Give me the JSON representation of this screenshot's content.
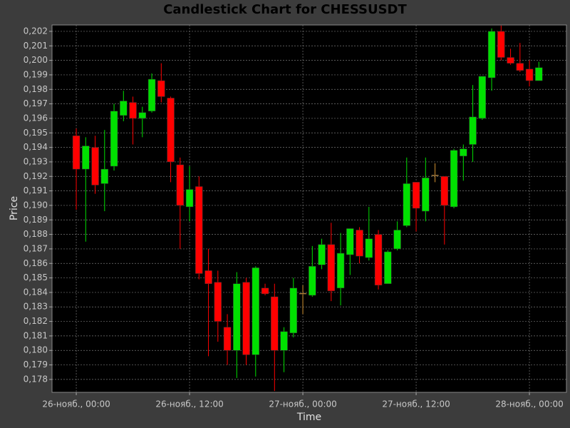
{
  "chart_data": {
    "type": "candlestick",
    "title": "Candlestick Chart for CHESSUSDT",
    "x_label": "Time",
    "y_label": "Price",
    "x": [
      0,
      1,
      2,
      3,
      4,
      5,
      6,
      7,
      8,
      9,
      10,
      11,
      12,
      13,
      14,
      15,
      16,
      17,
      18,
      19,
      20,
      21,
      22,
      23,
      24,
      25,
      26,
      27,
      28,
      29,
      30,
      31,
      32,
      33,
      34,
      35,
      36,
      37,
      38,
      39,
      40,
      41,
      42,
      43,
      44,
      45,
      46,
      47,
      48,
      49
    ],
    "open": [
      0.1948,
      0.1925,
      0.194,
      0.1915,
      0.1927,
      0.1962,
      0.1971,
      0.196,
      0.1965,
      0.1986,
      0.1974,
      0.1928,
      0.1899,
      0.1913,
      0.1855,
      0.1847,
      0.1816,
      0.18,
      0.1847,
      0.1797,
      0.1843,
      0.1837,
      0.18,
      0.1812,
      0.18395,
      0.1838,
      0.1859,
      0.1873,
      0.1843,
      0.1866,
      0.1883,
      0.1864,
      0.188,
      0.1846,
      0.187,
      0.1886,
      0.1916,
      0.1896,
      0.1921,
      0.192,
      0.1899,
      0.1934,
      0.1942,
      0.196,
      0.1988,
      0.202,
      0.2002,
      0.1998,
      0.1994,
      0.1986
    ],
    "close": [
      0.1925,
      0.1941,
      0.1914,
      0.1925,
      0.1965,
      0.1972,
      0.196,
      0.1964,
      0.1987,
      0.1975,
      0.193,
      0.19,
      0.1911,
      0.1853,
      0.1846,
      0.182,
      0.18,
      0.1846,
      0.1797,
      0.1857,
      0.1839,
      0.18,
      0.1813,
      0.1843,
      0.18395,
      0.1858,
      0.1873,
      0.1841,
      0.1867,
      0.1884,
      0.1865,
      0.1877,
      0.1845,
      0.1868,
      0.1883,
      0.1915,
      0.1898,
      0.1919,
      0.1921,
      0.19,
      0.1938,
      0.1939,
      0.1961,
      0.1989,
      0.202,
      0.2002,
      0.1998,
      0.1993,
      0.1986,
      0.1995
    ],
    "high": [
      0.1953,
      0.1947,
      0.1948,
      0.1952,
      0.197,
      0.1979,
      0.1975,
      0.1968,
      0.1991,
      0.1998,
      0.1975,
      0.1933,
      0.1927,
      0.192,
      0.187,
      0.1855,
      0.1825,
      0.1854,
      0.185,
      0.1858,
      0.1846,
      0.1846,
      0.1816,
      0.185,
      0.1845,
      0.1872,
      0.1877,
      0.1888,
      0.1881,
      0.1884,
      0.1885,
      0.1899,
      0.1883,
      0.1869,
      0.1889,
      0.1933,
      0.1916,
      0.1933,
      0.1929,
      0.192,
      0.1939,
      0.1942,
      0.1983,
      0.1989,
      0.2022,
      0.2024,
      0.2008,
      0.2012,
      0.2,
      0.1999
    ],
    "low": [
      0.1897,
      0.1875,
      0.1908,
      0.1896,
      0.1924,
      0.1958,
      0.1942,
      0.1947,
      0.1964,
      0.1971,
      0.1916,
      0.187,
      0.1889,
      0.1849,
      0.1796,
      0.1806,
      0.179,
      0.1781,
      0.179,
      0.1782,
      0.1838,
      0.1772,
      0.1785,
      0.1809,
      0.1825,
      0.1837,
      0.1856,
      0.1834,
      0.1831,
      0.1852,
      0.186,
      0.1862,
      0.1842,
      0.1846,
      0.1869,
      0.1885,
      0.1882,
      0.1889,
      0.1916,
      0.1873,
      0.1898,
      0.1917,
      0.193,
      0.1959,
      0.1979,
      0.2,
      0.1997,
      0.1992,
      0.1982,
      0.1986
    ],
    "up_color": "#00e000",
    "down_color": "#ff0000",
    "neutral_color": "#d09030",
    "xlim": [
      -2.57,
      51.92
    ],
    "ylim": [
      0.17711,
      0.20244
    ],
    "grid": true,
    "xticks": [
      {
        "value": 0,
        "label": "26-нояб., 00:00"
      },
      {
        "value": 12,
        "label": "26-нояб., 12:00"
      },
      {
        "value": 24,
        "label": "27-нояб., 00:00"
      },
      {
        "value": 36,
        "label": "27-нояб., 12:00"
      },
      {
        "value": 48,
        "label": "28-нояб., 00:00"
      }
    ],
    "yticks": [
      {
        "value": 0.178,
        "label": "0,178"
      },
      {
        "value": 0.179,
        "label": "0,179"
      },
      {
        "value": 0.18,
        "label": "0,180"
      },
      {
        "value": 0.181,
        "label": "0,181"
      },
      {
        "value": 0.182,
        "label": "0,182"
      },
      {
        "value": 0.183,
        "label": "0,183"
      },
      {
        "value": 0.184,
        "label": "0,184"
      },
      {
        "value": 0.185,
        "label": "0,185"
      },
      {
        "value": 0.186,
        "label": "0,186"
      },
      {
        "value": 0.187,
        "label": "0,187"
      },
      {
        "value": 0.188,
        "label": "0,188"
      },
      {
        "value": 0.189,
        "label": "0,189"
      },
      {
        "value": 0.19,
        "label": "0,190"
      },
      {
        "value": 0.191,
        "label": "0,191"
      },
      {
        "value": 0.192,
        "label": "0,192"
      },
      {
        "value": 0.193,
        "label": "0,193"
      },
      {
        "value": 0.194,
        "label": "0,194"
      },
      {
        "value": 0.195,
        "label": "0,195"
      },
      {
        "value": 0.196,
        "label": "0,196"
      },
      {
        "value": 0.197,
        "label": "0,197"
      },
      {
        "value": 0.198,
        "label": "0,198"
      },
      {
        "value": 0.199,
        "label": "0,199"
      },
      {
        "value": 0.2,
        "label": "0,200"
      },
      {
        "value": 0.201,
        "label": "0,201"
      },
      {
        "value": 0.202,
        "label": "0,202"
      }
    ]
  }
}
